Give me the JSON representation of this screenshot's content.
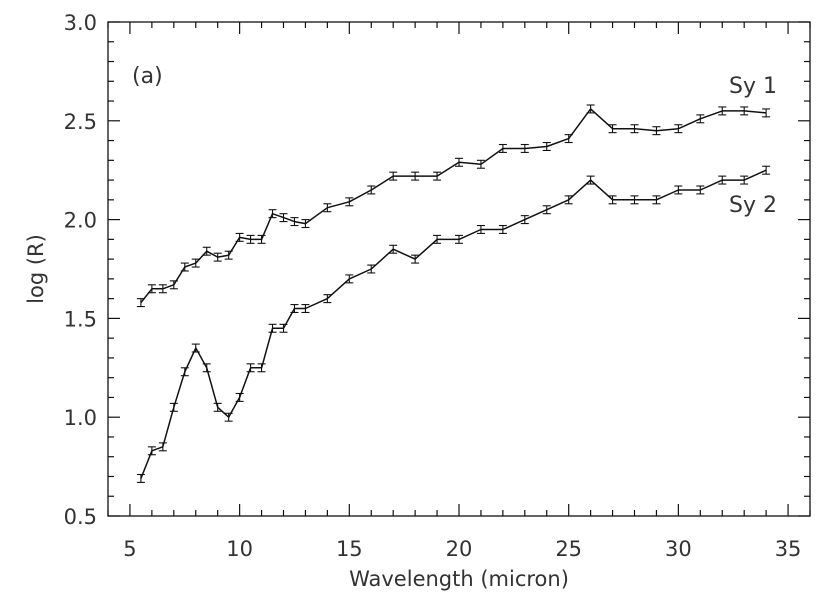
{
  "chart_data": {
    "type": "line",
    "xlabel": "Wavelength (micron)",
    "ylabel": "log (R)",
    "xlim": [
      4,
      36
    ],
    "ylim": [
      0.5,
      3.0
    ],
    "xticks": [
      5,
      10,
      15,
      20,
      25,
      30,
      35
    ],
    "yticks": [
      0.5,
      1.0,
      1.5,
      2.0,
      2.5,
      3.0
    ],
    "x_tick_labels": [
      "5",
      "10",
      "15",
      "20",
      "25",
      "30",
      "35"
    ],
    "y_tick_labels": [
      "0.5",
      "1.0",
      "1.5",
      "2.0",
      "2.5",
      "3.0"
    ],
    "grid": false,
    "panel_label": "(a)",
    "error_bar_halfwidth": 0.02,
    "series": [
      {
        "name": "Sy 1",
        "x": [
          5.5,
          6.0,
          6.5,
          7.0,
          7.5,
          8.0,
          8.5,
          9.0,
          9.5,
          10.0,
          10.5,
          11.0,
          11.5,
          12.0,
          12.5,
          13.0,
          14.0,
          15.0,
          16.0,
          17.0,
          18.0,
          19.0,
          20.0,
          21.0,
          22.0,
          23.0,
          24.0,
          25.0,
          26.0,
          27.0,
          28.0,
          29.0,
          30.0,
          31.0,
          32.0,
          33.0,
          34.0
        ],
        "y": [
          1.58,
          1.65,
          1.65,
          1.67,
          1.76,
          1.78,
          1.84,
          1.81,
          1.82,
          1.91,
          1.9,
          1.9,
          2.03,
          2.01,
          1.99,
          1.98,
          2.06,
          2.09,
          2.15,
          2.22,
          2.22,
          2.22,
          2.29,
          2.28,
          2.36,
          2.36,
          2.37,
          2.41,
          2.56,
          2.46,
          2.46,
          2.45,
          2.46,
          2.51,
          2.55,
          2.55,
          2.54
        ]
      },
      {
        "name": "Sy 2",
        "x": [
          5.5,
          6.0,
          6.5,
          7.0,
          7.5,
          8.0,
          8.5,
          9.0,
          9.5,
          10.0,
          10.5,
          11.0,
          11.5,
          12.0,
          12.5,
          13.0,
          14.0,
          15.0,
          16.0,
          17.0,
          18.0,
          19.0,
          20.0,
          21.0,
          22.0,
          23.0,
          24.0,
          25.0,
          26.0,
          27.0,
          28.0,
          29.0,
          30.0,
          31.0,
          32.0,
          33.0,
          34.0
        ],
        "y": [
          0.69,
          0.83,
          0.85,
          1.05,
          1.23,
          1.35,
          1.25,
          1.05,
          1.0,
          1.1,
          1.25,
          1.25,
          1.45,
          1.45,
          1.55,
          1.55,
          1.6,
          1.7,
          1.75,
          1.85,
          1.8,
          1.9,
          1.9,
          1.95,
          1.95,
          2.0,
          2.05,
          2.1,
          2.2,
          2.1,
          2.1,
          2.1,
          2.15,
          2.15,
          2.2,
          2.2,
          2.25
        ]
      }
    ]
  }
}
